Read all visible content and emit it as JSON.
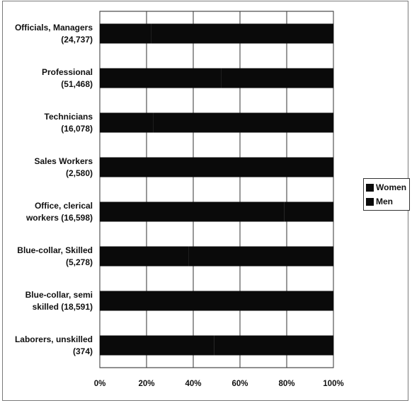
{
  "chart_data": {
    "type": "bar",
    "orientation": "horizontal",
    "stacked": true,
    "title": "",
    "xlabel": "",
    "ylabel": "",
    "categories": [
      [
        "Officials, Managers",
        "(24,737)"
      ],
      [
        "Professional",
        "(51,468)"
      ],
      [
        "Technicians",
        "(16,078)"
      ],
      [
        "Sales Workers",
        "(2,580)"
      ],
      [
        "Office, clerical",
        "workers (16,598)"
      ],
      [
        "Blue-collar, Skilled",
        "(5,278)"
      ],
      [
        "Blue-collar, semi",
        "skilled (18,591)"
      ],
      [
        "Laborers, unskilled",
        "(374)"
      ]
    ],
    "series": [
      {
        "name": "Women",
        "values": [
          22,
          52,
          23,
          25,
          79,
          38,
          60,
          49
        ],
        "color": "#0a0a0a"
      },
      {
        "name": "Men",
        "values": [
          78,
          48,
          77,
          75,
          21,
          62,
          40,
          51
        ],
        "color": "#0a0a0a"
      }
    ],
    "xlim": [
      0,
      100
    ],
    "xticks": [
      "0%",
      "20%",
      "40%",
      "60%",
      "80%",
      "100%"
    ],
    "grid": true,
    "legend_position": "right"
  }
}
